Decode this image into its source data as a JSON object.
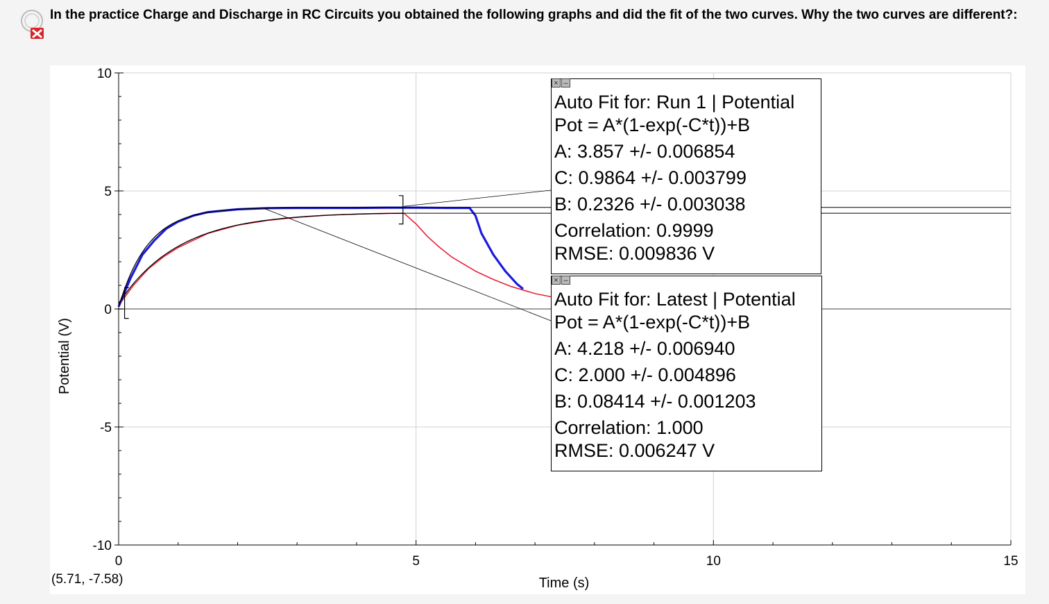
{
  "question": {
    "text": "In the practice Charge and Discharge in RC Circuits you obtained the following graphs and did the fit of the two curves. Why the two curves are different?:",
    "status_icon": "red-x-incorrect-icon"
  },
  "cursor_readout": "(5.71, -7.58)",
  "fit_boxes": [
    {
      "title": "Auto Fit for: Run 1 | Potential",
      "equation": "Pot = A*(1-exp(-C*t))+B",
      "A": "A: 3.857 +/- 0.006854",
      "C": "C: 0.9864 +/- 0.003799",
      "B": "B: 0.2326 +/- 0.003038",
      "correlation": "Correlation: 0.9999",
      "rmse": "RMSE: 0.009836 V"
    },
    {
      "title": "Auto Fit for: Latest | Potential",
      "equation": "Pot = A*(1-exp(-C*t))+B",
      "A": "A: 4.218 +/- 0.006940",
      "C": "C: 2.000 +/- 0.004896",
      "B": "B: 0.08414 +/- 0.001203",
      "correlation": "Correlation: 1.000",
      "rmse": "RMSE: 0.006247 V"
    }
  ],
  "chart_data": {
    "type": "line",
    "xlabel": "Time (s)",
    "ylabel": "Potential (V)",
    "xlim": [
      0,
      15
    ],
    "ylim": [
      -10,
      10
    ],
    "xticks": [
      0,
      5,
      10,
      15
    ],
    "yticks": [
      -10,
      -5,
      0,
      5,
      10
    ],
    "grid": true,
    "colors": {
      "run1": "#e8203a",
      "latest": "#1a1adc",
      "fit": "#000000",
      "grid": "#d0d0d0"
    },
    "series": [
      {
        "x": [
          0,
          0.25,
          0.5,
          0.75,
          1.0,
          1.5,
          2.0,
          2.5,
          3.0,
          3.5,
          4.0,
          4.5,
          4.8,
          5.0,
          5.2,
          5.4,
          5.6,
          5.8,
          6.0,
          6.3,
          6.6,
          7.0,
          7.3
        ],
        "y": [
          0.15,
          1.0,
          1.7,
          2.2,
          2.6,
          3.2,
          3.55,
          3.75,
          3.88,
          3.97,
          4.02,
          4.05,
          4.05,
          3.6,
          3.05,
          2.6,
          2.2,
          1.9,
          1.6,
          1.25,
          0.95,
          0.65,
          0.5
        ]
      },
      {
        "x": [
          0,
          0.2,
          0.4,
          0.6,
          0.8,
          1.0,
          1.25,
          1.5,
          2.0,
          2.5,
          3.0,
          3.5,
          4.0,
          4.5,
          5.0,
          5.5,
          5.9,
          6.0,
          6.1,
          6.3,
          6.5,
          6.7,
          6.8
        ],
        "y": [
          0.1,
          1.3,
          2.3,
          2.9,
          3.4,
          3.7,
          3.95,
          4.1,
          4.22,
          4.27,
          4.28,
          4.28,
          4.28,
          4.29,
          4.29,
          4.28,
          4.28,
          3.95,
          3.2,
          2.3,
          1.6,
          1.05,
          0.85
        ]
      }
    ],
    "fits": [
      {
        "A": 3.857,
        "C": 0.9864,
        "B": 0.2326,
        "t_range": [
          0,
          4.8
        ]
      },
      {
        "A": 4.218,
        "C": 2.0,
        "B": 0.08414,
        "t_range": [
          0,
          4.8
        ]
      }
    ]
  }
}
